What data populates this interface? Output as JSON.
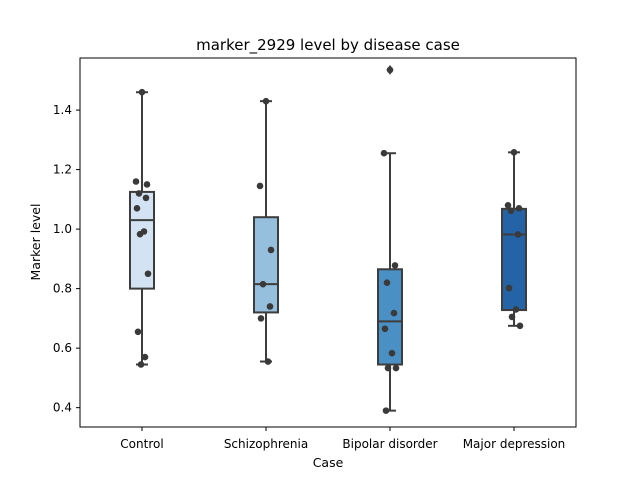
{
  "chart_data": {
    "type": "box",
    "title": "marker_2929 level by disease case",
    "xlabel": "Case",
    "ylabel": "Marker level",
    "ylim": [
      0.335,
      1.575
    ],
    "yticks": [
      0.4,
      0.6,
      0.8,
      1.0,
      1.2,
      1.4
    ],
    "ytick_labels": [
      "0.4",
      "0.6",
      "0.8",
      "1.0",
      "1.2",
      "1.4"
    ],
    "categories": [
      "Control",
      "Schizophrenia",
      "Bipolar disorder",
      "Major depression"
    ],
    "colors": [
      "#d4e3f3",
      "#95bfdc",
      "#4b90c4",
      "#2463a6"
    ],
    "grid": false,
    "legend": "none",
    "boxes": [
      {
        "min": 0.545,
        "q1": 0.8,
        "median": 1.03,
        "q3": 1.125,
        "max": 1.46,
        "outliers": []
      },
      {
        "min": 0.555,
        "q1": 0.72,
        "median": 0.815,
        "q3": 1.04,
        "max": 1.43,
        "outliers": []
      },
      {
        "min": 0.39,
        "q1": 0.545,
        "median": 0.69,
        "q3": 0.865,
        "max": 1.255,
        "outliers": [
          1.535
        ]
      },
      {
        "min": 0.675,
        "q1": 0.728,
        "median": 0.982,
        "q3": 1.068,
        "max": 1.258,
        "outliers": []
      }
    ],
    "points": [
      [
        1.46,
        1.16,
        1.15,
        1.12,
        1.105,
        1.07,
        0.992,
        0.983,
        0.85,
        0.655,
        0.57,
        0.545
      ],
      [
        1.43,
        1.145,
        0.93,
        0.815,
        0.74,
        0.7,
        0.555
      ],
      [
        1.535,
        1.255,
        0.878,
        0.82,
        0.718,
        0.665,
        0.583,
        0.533,
        0.533,
        0.39
      ],
      [
        1.258,
        1.08,
        1.07,
        1.062,
        0.982,
        0.802,
        0.73,
        0.705,
        0.675
      ]
    ]
  }
}
